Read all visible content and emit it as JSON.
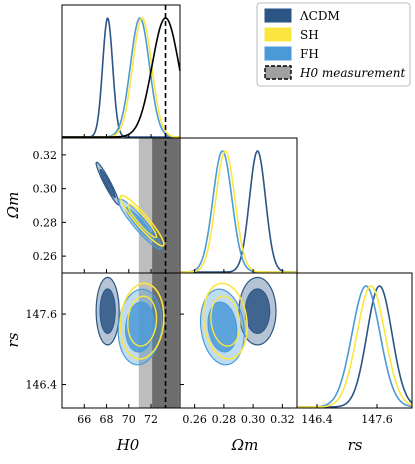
{
  "colors": {
    "lcdm": "#2b5585",
    "sh": "#fbe63d",
    "fh": "#4b9ad8",
    "meas_inner": "#6d6d6d",
    "meas_outer": "#bdbdbd",
    "meas_line": "#000000"
  },
  "legend": {
    "placement": "top-right",
    "entries": [
      "ΛCDM",
      "SH",
      "FH",
      "H0 measurement"
    ]
  },
  "axes": {
    "xlabels": [
      "H0",
      "Ωm",
      "rs"
    ],
    "ylabels": [
      "Ωm",
      "rs"
    ]
  },
  "ticks": {
    "H0": {
      "values": [
        66,
        68,
        70,
        72
      ],
      "labels": [
        "66",
        "68",
        "70",
        "72"
      ]
    },
    "Om_x": {
      "values": [
        0.26,
        0.28,
        0.3,
        0.32
      ],
      "labels": [
        "0.26",
        "0.28",
        "0.30",
        "0.32"
      ]
    },
    "Om_y": {
      "values": [
        0.26,
        0.28,
        0.3,
        0.32
      ],
      "labels": [
        "0.26",
        "0.28",
        "0.30",
        "0.32"
      ]
    },
    "rs_x": {
      "values": [
        146.4,
        147.6
      ],
      "labels": [
        "146.4",
        "147.6"
      ]
    },
    "rs_y": {
      "values": [
        146.4,
        147.6
      ],
      "labels": [
        "146.4",
        "147.6"
      ]
    }
  },
  "chart_data": {
    "type": "corner",
    "parameters": [
      "H0",
      "Ωm",
      "rs"
    ],
    "ranges": {
      "H0": [
        64.0,
        74.6
      ],
      "Om": [
        0.25,
        0.33
      ],
      "rs": [
        146.0,
        148.3
      ]
    },
    "measurement": {
      "H0": 73.3,
      "sigma1": [
        72.1,
        74.5
      ],
      "sigma2": [
        70.9,
        75.7
      ]
    },
    "series": [
      {
        "name": "ΛCDM",
        "color_key": "lcdm",
        "H0": {
          "mean": 68.1,
          "sigma": 0.45
        },
        "Om": {
          "mean": 0.303,
          "sigma": 0.0055
        },
        "rs": {
          "mean": 147.65,
          "sigma": 0.25
        },
        "corr": {
          "H0_Om": -0.95,
          "H0_rs": 0.0,
          "Om_rs": 0.0
        }
      },
      {
        "name": "SH",
        "color_key": "sh",
        "H0": {
          "mean": 71.2,
          "sigma": 0.85
        },
        "Om": {
          "mean": 0.281,
          "sigma": 0.0065
        },
        "rs": {
          "mean": 147.48,
          "sigma": 0.28
        },
        "corr": {
          "H0_Om": -0.93,
          "H0_rs": 0.1,
          "Om_rs": -0.15
        }
      },
      {
        "name": "FH",
        "color_key": "fh",
        "H0": {
          "mean": 71.0,
          "sigma": 0.85
        },
        "Om": {
          "mean": 0.279,
          "sigma": 0.0065
        },
        "rs": {
          "mean": 147.38,
          "sigma": 0.28
        },
        "corr": {
          "H0_Om": -0.93,
          "H0_rs": 0.1,
          "Om_rs": -0.15
        }
      }
    ]
  }
}
